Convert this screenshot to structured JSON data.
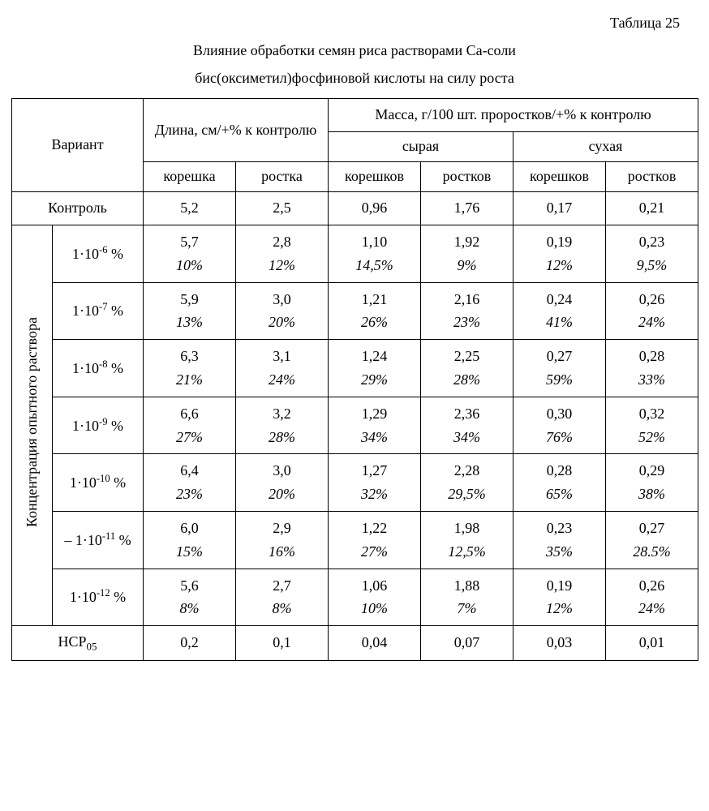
{
  "label": "Таблица 25",
  "title_line1": "Влияние обработки семян риса растворами Са-соли",
  "title_line2": "бис(оксиметил)фосфиновой кислоты на силу роста",
  "headers": {
    "variant": "Вариант",
    "length": "Длина, см/+% к контролю",
    "mass": "Масса, г/100 шт. проростков/+% к контролю",
    "raw": "сырая",
    "dry": "сухая",
    "root": "корешка",
    "sprout": "ростка",
    "roots": "корешков",
    "sprouts": "ростков"
  },
  "rows": {
    "control_label": "Контроль",
    "control": [
      "5,2",
      "2,5",
      "0,96",
      "1,76",
      "0,17",
      "0,21"
    ],
    "conc_group_label": "Концентрация опытного раствора",
    "items": [
      {
        "conc_html": "1·10<sup>-6</sup> %",
        "vals": [
          "5,7",
          "2,8",
          "1,10",
          "1,92",
          "0,19",
          "0,23"
        ],
        "pcts": [
          "10%",
          "12%",
          "14,5%",
          "9%",
          "12%",
          "9,5%"
        ]
      },
      {
        "conc_html": "1·10<sup>-7</sup> %",
        "vals": [
          "5,9",
          "3,0",
          "1,21",
          "2,16",
          "0,24",
          "0,26"
        ],
        "pcts": [
          "13%",
          "20%",
          "26%",
          "23%",
          "41%",
          "24%"
        ]
      },
      {
        "conc_html": "1·10<sup>-8</sup> %",
        "vals": [
          "6,3",
          "3,1",
          "1,24",
          "2,25",
          "0,27",
          "0,28"
        ],
        "pcts": [
          "21%",
          "24%",
          "29%",
          "28%",
          "59%",
          "33%"
        ]
      },
      {
        "conc_html": "1·10<sup>-9</sup> %",
        "vals": [
          "6,6",
          "3,2",
          "1,29",
          "2,36",
          "0,30",
          "0,32"
        ],
        "pcts": [
          "27%",
          "28%",
          "34%",
          "34%",
          "76%",
          "52%"
        ]
      },
      {
        "conc_html": "1·10<sup>-10</sup> %",
        "vals": [
          "6,4",
          "3,0",
          "1,27",
          "2,28",
          "0,28",
          "0,29"
        ],
        "pcts": [
          "23%",
          "20%",
          "32%",
          "29,5%",
          "65%",
          "38%"
        ]
      },
      {
        "conc_html": "– 1·10<sup>-11</sup> %",
        "vals": [
          "6,0",
          "2,9",
          "1,22",
          "1,98",
          "0,23",
          "0,27"
        ],
        "pcts": [
          "15%",
          "16%",
          "27%",
          "12,5%",
          "35%",
          "28.5%"
        ]
      },
      {
        "conc_html": "1·10<sup>-12</sup> %",
        "vals": [
          "5,6",
          "2,7",
          "1,06",
          "1,88",
          "0,19",
          "0,26"
        ],
        "pcts": [
          "8%",
          "8%",
          "10%",
          "7%",
          "12%",
          "24%"
        ]
      }
    ],
    "hsr_label_html": "НСР<sub>05</sub>",
    "hsr": [
      "0,2",
      "0,1",
      "0,04",
      "0,07",
      "0,03",
      "0,01"
    ]
  }
}
